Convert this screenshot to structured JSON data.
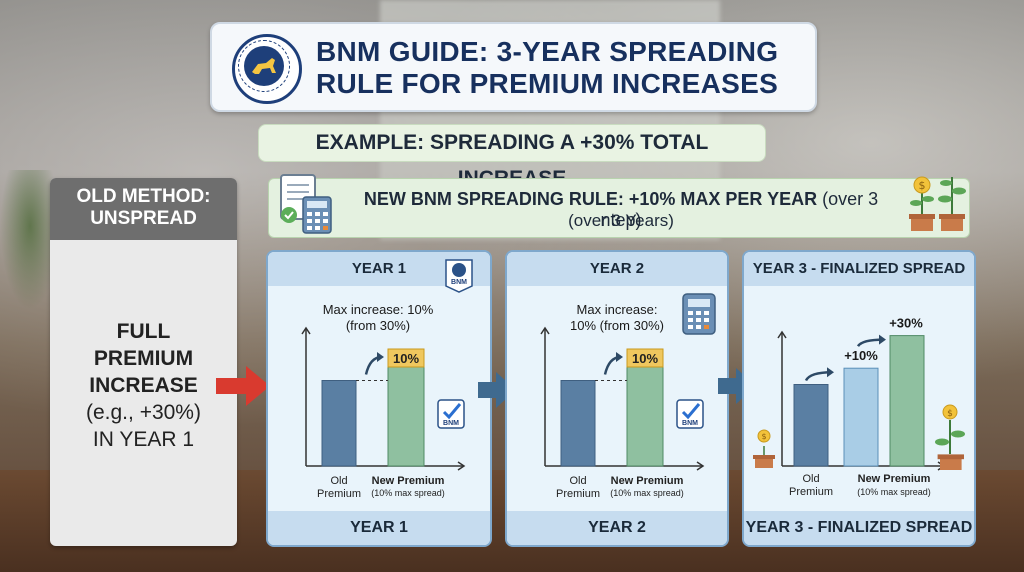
{
  "header": {
    "title": "BNM GUIDE: 3-YEAR SPREADING RULE FOR PREMIUM INCREASES",
    "seal_text": "BANK NEGARA MALAYSIA"
  },
  "example": "EXAMPLE: SPREADING A +30% TOTAL INCREASE",
  "old_method": {
    "title": "OLD METHOD: UNSPREAD",
    "line1": "FULL",
    "line2": "PREMIUM",
    "line3": "INCREASE",
    "line4": "(e.g., +30%)",
    "line5": "IN YEAR 1"
  },
  "new_rule": {
    "line1_bold": "NEW BNM SPREADING RULE: +10% MAX  PER YEAR",
    "line1_extra": "(over 3 ntep)",
    "line2": "(over 3 Years)"
  },
  "colors": {
    "old_bar": "#5a7fa3",
    "new_bar": "#8fc0a0",
    "label_tag": "#efc75e",
    "panel_border": "#7fa8cc"
  },
  "panels": [
    {
      "header": "YEAR 1",
      "footer": "YEAR 1",
      "max_line1": "Max increase: 10%",
      "max_line2": "(from 30%)",
      "tag": "10%",
      "old_label1": "Old",
      "old_label2": "Premium",
      "new_label1": "New Premium",
      "new_label2": "(10% max spread)",
      "icon": "bnm-badge-icon",
      "badge": "BNM"
    },
    {
      "header": "YEAR 2",
      "footer": "YEAR 2",
      "max_line1": "Max increase:",
      "max_line2": "10% (from 30%)",
      "tag": "10%",
      "old_label1": "Old",
      "old_label2": "Premium",
      "new_label1": "New Premium",
      "new_label2": "(10% max spread)",
      "icon": "calculator-icon",
      "badge": "BNM"
    },
    {
      "header": "YEAR 3 - FINALIZED SPREAD",
      "footer": "YEAR 3 - FINALIZED SPREAD",
      "tag1": "+10%",
      "tag2": "+30%",
      "old_label1": "Old",
      "old_label2": "Premium",
      "new_label1": "New Premium",
      "new_label2": "(10% max spread)",
      "icon": "plant-coin-icon"
    }
  ],
  "chart_data": [
    {
      "type": "bar",
      "title": "YEAR 1",
      "categories": [
        "Old Premium",
        "New Premium"
      ],
      "values": [
        100,
        110
      ]
    },
    {
      "type": "bar",
      "title": "YEAR 2",
      "categories": [
        "Old Premium",
        "New Premium"
      ],
      "values": [
        100,
        110
      ]
    },
    {
      "type": "bar",
      "title": "YEAR 3 - FINALIZED SPREAD",
      "categories": [
        "Old Premium",
        "+10%",
        "+30%"
      ],
      "values": [
        100,
        110,
        130
      ]
    }
  ]
}
